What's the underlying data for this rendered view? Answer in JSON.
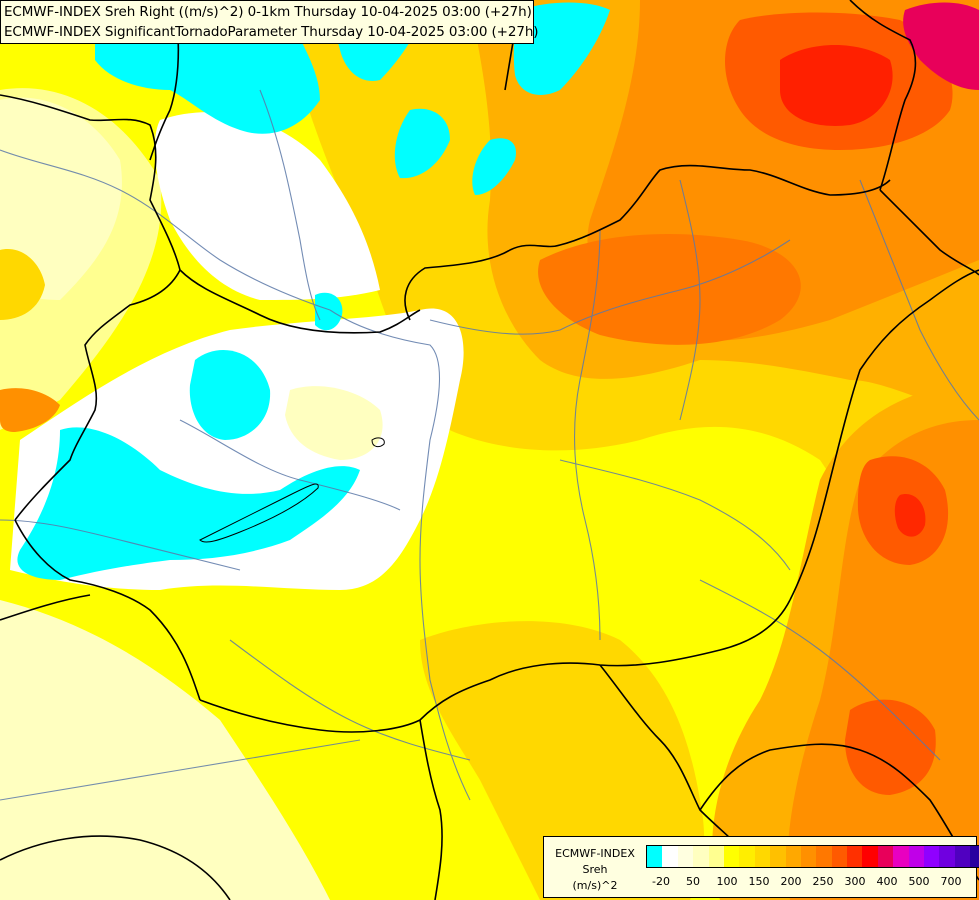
{
  "header": {
    "line1": "ECMWF-INDEX Sreh Right ((m/s)^2) 0-1km Thursday 10-04-2025 03:00 (+27h)",
    "line2": "ECMWF-INDEX SignificantTornadoParameter Thursday 10-04-2025 03:00 (+27h)"
  },
  "legend": {
    "title": "ECMWF-INDEX",
    "variable": "Sreh",
    "unit": "(m/s)^2",
    "colors": [
      "#00ffff",
      "#ffffff",
      "#ffffe0",
      "#ffffc0",
      "#ffff90",
      "#ffff00",
      "#ffee00",
      "#ffd800",
      "#ffc000",
      "#ffa800",
      "#ff9000",
      "#ff7800",
      "#ff5a00",
      "#ff3000",
      "#ff0000",
      "#e8005a",
      "#e800c0",
      "#c000e8",
      "#9000ff",
      "#7000e0",
      "#5000c0",
      "#2800a0",
      "#000080"
    ],
    "ticks": [
      "-20",
      "50",
      "100",
      "150",
      "200",
      "250",
      "300",
      "400",
      "500",
      "700"
    ]
  },
  "palette": {
    "cyan": "#00ffff",
    "white": "#ffffff",
    "pale": "#ffffc0",
    "lightyellow": "#ffff90",
    "yellow": "#ffff00",
    "gold": "#ffd800",
    "orange": "#ffb000",
    "darkorange": "#ff9000",
    "red": "#ff4000",
    "crimson": "#e8005a"
  }
}
